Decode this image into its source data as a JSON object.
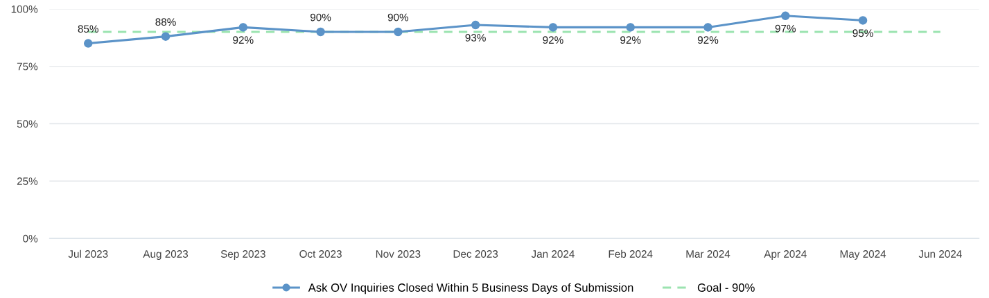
{
  "chart_data": {
    "type": "line",
    "categories": [
      "Jul 2023",
      "Aug 2023",
      "Sep 2023",
      "Oct 2023",
      "Nov 2023",
      "Dec 2023",
      "Jan 2024",
      "Feb 2024",
      "Mar 2024",
      "Apr 2024",
      "May 2024",
      "Jun 2024"
    ],
    "series": [
      {
        "name": "Ask OV Inquiries Closed Within 5 Business Days of Submission",
        "color": "#5b93c8",
        "marker": "circle",
        "line_style": "solid",
        "values": [
          85,
          88,
          92,
          90,
          90,
          93,
          92,
          92,
          92,
          97,
          95,
          null
        ],
        "value_labels": [
          "85%",
          "88%",
          "92%",
          "90%",
          "90%",
          "93%",
          "92%",
          "92%",
          "92%",
          "97%",
          "95%",
          null
        ]
      },
      {
        "name": "Goal - 90%",
        "color": "#9be3b0",
        "marker": "none",
        "line_style": "dashed",
        "values": [
          90,
          90,
          90,
          90,
          90,
          90,
          90,
          90,
          90,
          90,
          90,
          90
        ]
      }
    ],
    "ylim": [
      0,
      100
    ],
    "yticks": [
      {
        "value": 0,
        "label": "0%"
      },
      {
        "value": 25,
        "label": "25%"
      },
      {
        "value": 50,
        "label": "50%"
      },
      {
        "value": 75,
        "label": "75%"
      },
      {
        "value": 100,
        "label": "100%"
      }
    ],
    "grid": "y",
    "legend": "bottom"
  }
}
